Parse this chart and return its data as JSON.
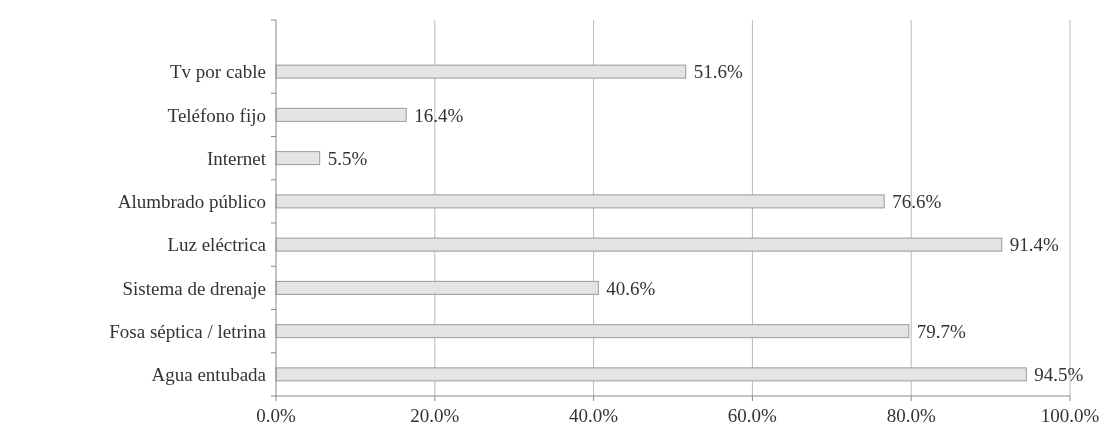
{
  "chart_data": {
    "type": "bar",
    "orientation": "horizontal",
    "categories": [
      "Tv por cable",
      "Teléfono fijo",
      "Internet",
      "Alumbrado público",
      "Luz eléctrica",
      "Sistema de drenaje",
      "Fosa séptica / letrina",
      "Agua entubada"
    ],
    "values": [
      51.6,
      16.4,
      5.5,
      76.6,
      91.4,
      40.6,
      79.7,
      94.5
    ],
    "value_labels": [
      "51.6%",
      "16.4%",
      "5.5%",
      "76.6%",
      "91.4%",
      "40.6%",
      "79.7%",
      "94.5%"
    ],
    "color": "#e4e4e4",
    "xlim": [
      0,
      100
    ],
    "xticks": [
      {
        "value": 0,
        "label": "0.0%"
      },
      {
        "value": 20,
        "label": "20.0%"
      },
      {
        "value": 40,
        "label": "40.0%"
      },
      {
        "value": 60,
        "label": "60.0%"
      },
      {
        "value": 80,
        "label": "80.0%"
      },
      {
        "value": 100,
        "label": "100.0%"
      }
    ],
    "grid": "x"
  }
}
